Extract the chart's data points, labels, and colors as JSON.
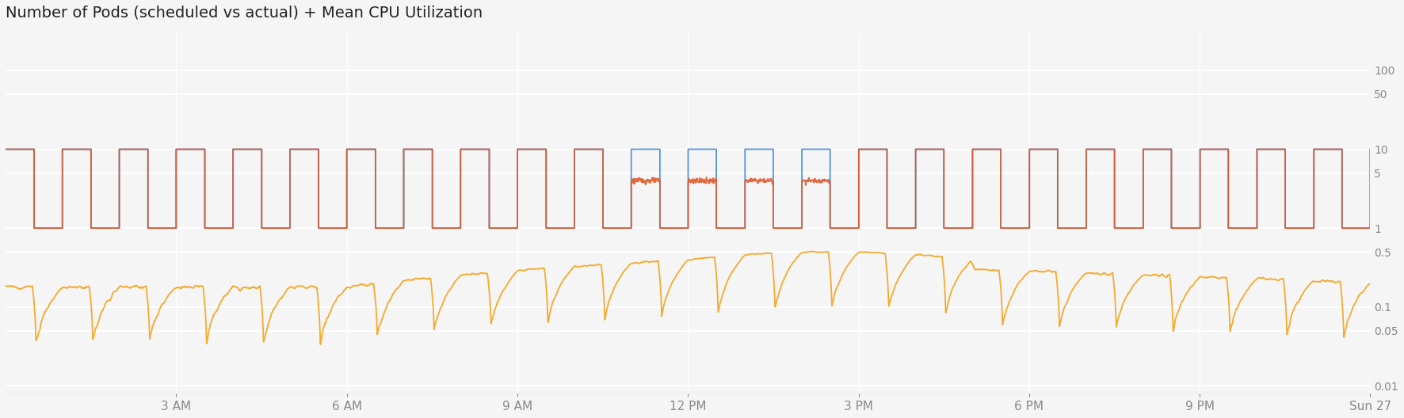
{
  "title": "Number of Pods (scheduled vs actual) + Mean CPU Utilization",
  "title_fontsize": 14,
  "background_color": "#f5f5f5",
  "plot_bg_color": "#f5f5f5",
  "grid_color": "#ffffff",
  "tick_label_color": "#888888",
  "blue_color": "#4a90d9",
  "red_color": "#e05a2b",
  "orange_color": "#f5a623",
  "yticks": [
    100,
    50,
    10,
    5,
    1,
    0.5,
    0.1,
    0.05,
    0.01
  ],
  "xtick_labels": [
    "3 AM",
    "6 AM",
    "9 AM",
    "12 PM",
    "3 PM",
    "6 PM",
    "9 PM",
    "Sun 27"
  ],
  "xtick_vals": [
    3,
    6,
    9,
    12,
    15,
    18,
    21,
    24
  ],
  "pod_high": 10,
  "pod_low": 1,
  "pod_mid": 4,
  "cpu_high": 0.28,
  "cpu_low": 0.02,
  "period": 1.0,
  "duty": 0.5
}
